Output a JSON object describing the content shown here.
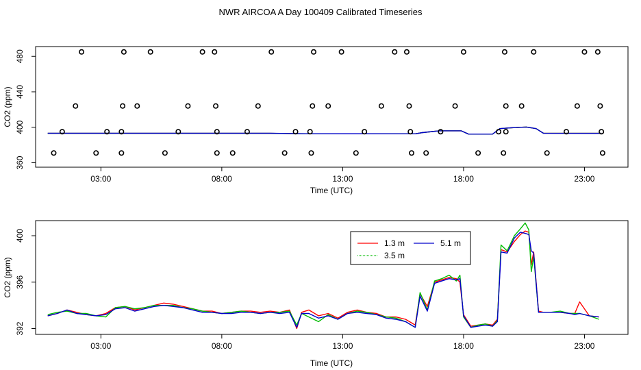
{
  "title": "NWR AIRCOA A  Day 100409  Calibrated Timeseries",
  "colors": {
    "1.3 m": "#ff0000",
    "3.5 m": "#00bb00",
    "5.1 m": "#0000cc"
  },
  "chart_data": [
    {
      "type": "scatter",
      "xlabel": "Time (UTC)",
      "ylabel": "CO2 (ppm)",
      "xlim": [
        0.3,
        24.8
      ],
      "ylim": [
        355,
        491
      ],
      "xticks": [
        3,
        8,
        13,
        18,
        23
      ],
      "xtick_labels": [
        "03:00",
        "08:00",
        "13:00",
        "18:00",
        "23:00"
      ],
      "yticks": [
        360,
        400,
        440,
        480
      ],
      "ytick_labels": [
        "360",
        "400",
        "440",
        "480"
      ],
      "grid": false,
      "points_x": [
        2.2,
        3.95,
        5.05,
        7.2,
        7.7,
        10.05,
        11.8,
        12.95,
        15.15,
        15.65,
        18.0,
        19.7,
        20.9,
        23.0,
        23.55,
        1.95,
        3.9,
        4.5,
        6.6,
        7.75,
        9.5,
        11.75,
        12.4,
        14.6,
        15.75,
        17.65,
        19.75,
        20.4,
        22.7,
        23.65,
        1.4,
        3.25,
        3.85,
        6.2,
        7.8,
        9.05,
        11.05,
        11.65,
        13.9,
        15.8,
        17.05,
        19.45,
        19.75,
        22.25,
        23.7,
        1.05,
        2.8,
        3.85,
        5.65,
        7.8,
        8.45,
        10.6,
        11.7,
        13.55,
        15.85,
        16.45,
        18.6,
        19.65,
        21.45,
        23.75
      ],
      "points_y": [
        485,
        485,
        485,
        485,
        485,
        485,
        485,
        485,
        485,
        485,
        485,
        485,
        485,
        485,
        485,
        424,
        424,
        424,
        424,
        424,
        424,
        424,
        424,
        424,
        424,
        424,
        424,
        424,
        424,
        424,
        395,
        395,
        395,
        395,
        395,
        395,
        395,
        395,
        395,
        395,
        395,
        395,
        395,
        395,
        395,
        371,
        371,
        371,
        371,
        371,
        371,
        371,
        371,
        371,
        371,
        371,
        371,
        371,
        371,
        371
      ],
      "series": [
        {
          "name": "1.3 m",
          "x": [
            0.8,
            10.0,
            11.5,
            16.0,
            16.3,
            17.0,
            17.9,
            18.2,
            19.2,
            19.5,
            20.0,
            20.6,
            21.0,
            21.3,
            23.7
          ],
          "y": [
            393.2,
            393.2,
            392.6,
            392.6,
            394.0,
            396.0,
            396.0,
            392.3,
            392.3,
            398.5,
            399.5,
            400.3,
            398.5,
            393.3,
            393.2
          ]
        },
        {
          "name": "3.5 m",
          "x": [
            0.8,
            10.0,
            11.5,
            16.0,
            16.3,
            17.0,
            17.9,
            18.2,
            19.2,
            19.5,
            20.0,
            20.6,
            21.0,
            21.3,
            23.7
          ],
          "y": [
            393.2,
            393.2,
            392.6,
            392.6,
            394.0,
            396.0,
            396.0,
            392.3,
            392.3,
            398.5,
            399.5,
            400.3,
            398.5,
            393.3,
            393.2
          ]
        },
        {
          "name": "5.1 m",
          "x": [
            0.8,
            10.0,
            11.5,
            16.0,
            16.3,
            17.0,
            17.9,
            18.2,
            19.2,
            19.5,
            20.0,
            20.6,
            21.0,
            21.3,
            23.7
          ],
          "y": [
            393.3,
            393.3,
            392.7,
            392.6,
            394.0,
            396.0,
            396.0,
            392.3,
            392.3,
            398.5,
            399.5,
            400.3,
            398.5,
            393.3,
            393.2
          ]
        }
      ]
    },
    {
      "type": "line",
      "xlabel": "Time (UTC)",
      "ylabel": "CO2 (ppm)",
      "xlim": [
        0.3,
        24.8
      ],
      "ylim": [
        391.5,
        401.3
      ],
      "xticks": [
        3,
        8,
        13,
        18,
        23
      ],
      "xtick_labels": [
        "03:00",
        "08:00",
        "13:00",
        "18:00",
        "23:00"
      ],
      "yticks": [
        392,
        396,
        400
      ],
      "ytick_labels": [
        "392",
        "396",
        "400"
      ],
      "grid": false,
      "legend": {
        "position": "top-right",
        "labels": [
          "1.3 m",
          "3.5 m",
          "5.1 m"
        ]
      },
      "series": [
        {
          "name": "1.3 m",
          "x": [
            0.8,
            1.2,
            1.6,
            2.0,
            2.4,
            2.8,
            3.2,
            3.6,
            4.0,
            4.4,
            4.8,
            5.2,
            5.6,
            6.0,
            6.4,
            6.8,
            7.2,
            7.6,
            8.0,
            8.4,
            8.8,
            9.2,
            9.6,
            10.0,
            10.4,
            10.8,
            11.1,
            11.3,
            11.6,
            12.0,
            12.4,
            12.8,
            13.2,
            13.6,
            14.0,
            14.4,
            14.8,
            15.2,
            15.6,
            16.0,
            16.2,
            16.5,
            16.8,
            17.1,
            17.4,
            17.7,
            17.85,
            18.0,
            18.3,
            18.6,
            18.9,
            19.2,
            19.4,
            19.55,
            19.8,
            20.1,
            20.35,
            20.55,
            20.7,
            20.8,
            20.9,
            21.1,
            21.3,
            21.6,
            22.0,
            22.4,
            22.6,
            22.8,
            23.2,
            23.6
          ],
          "y": [
            393.1,
            393.3,
            393.6,
            393.4,
            393.2,
            393.1,
            393.3,
            393.8,
            393.9,
            393.6,
            393.8,
            394.0,
            394.2,
            394.1,
            393.9,
            393.7,
            393.5,
            393.5,
            393.3,
            393.4,
            393.5,
            393.5,
            393.4,
            393.5,
            393.4,
            393.6,
            392.0,
            393.4,
            393.6,
            393.1,
            393.3,
            392.9,
            393.4,
            393.6,
            393.4,
            393.3,
            393.0,
            393.0,
            392.8,
            392.3,
            395.0,
            393.9,
            396.0,
            396.2,
            396.4,
            396.3,
            396.0,
            393.2,
            392.2,
            392.3,
            392.4,
            392.3,
            392.8,
            398.8,
            398.6,
            399.5,
            400.1,
            400.4,
            400.3,
            397.5,
            398.6,
            393.5,
            393.4,
            393.4,
            393.4,
            393.3,
            393.3,
            394.3,
            393.1,
            393.0
          ]
        },
        {
          "name": "3.5 m",
          "x": [
            0.8,
            1.2,
            1.6,
            2.0,
            2.4,
            2.8,
            3.2,
            3.6,
            4.0,
            4.4,
            4.8,
            5.2,
            5.6,
            6.0,
            6.4,
            6.8,
            7.2,
            7.6,
            8.0,
            8.4,
            8.8,
            9.2,
            9.6,
            10.0,
            10.4,
            10.8,
            11.1,
            11.3,
            11.6,
            12.0,
            12.4,
            12.8,
            13.2,
            13.6,
            14.0,
            14.4,
            14.8,
            15.2,
            15.6,
            16.0,
            16.2,
            16.5,
            16.8,
            17.1,
            17.4,
            17.7,
            17.85,
            18.0,
            18.3,
            18.6,
            18.9,
            19.2,
            19.4,
            19.55,
            19.8,
            20.1,
            20.35,
            20.55,
            20.7,
            20.8,
            20.9,
            21.1,
            21.3,
            21.6,
            22.0,
            22.4,
            22.6,
            22.8,
            23.2,
            23.6
          ],
          "y": [
            393.2,
            393.4,
            393.5,
            393.3,
            393.3,
            393.1,
            393.0,
            393.8,
            393.9,
            393.7,
            393.8,
            394.0,
            394.0,
            394.0,
            393.8,
            393.7,
            393.5,
            393.4,
            393.3,
            393.4,
            393.5,
            393.4,
            393.3,
            393.4,
            393.4,
            393.5,
            392.3,
            393.3,
            393.0,
            392.6,
            393.2,
            392.8,
            393.3,
            393.5,
            393.4,
            393.2,
            393.0,
            392.9,
            392.6,
            392.1,
            395.1,
            393.6,
            396.1,
            396.3,
            396.6,
            396.1,
            396.6,
            393.0,
            392.1,
            392.3,
            392.4,
            392.2,
            392.7,
            399.2,
            398.7,
            400.0,
            400.6,
            401.1,
            400.5,
            396.9,
            398.2,
            393.4,
            393.4,
            393.4,
            393.5,
            393.3,
            393.3,
            393.3,
            393.1,
            392.8
          ]
        },
        {
          "name": "5.1 m",
          "x": [
            0.8,
            1.2,
            1.6,
            2.0,
            2.4,
            2.8,
            3.2,
            3.6,
            4.0,
            4.4,
            4.8,
            5.2,
            5.6,
            6.0,
            6.4,
            6.8,
            7.2,
            7.6,
            8.0,
            8.4,
            8.8,
            9.2,
            9.6,
            10.0,
            10.4,
            10.8,
            11.1,
            11.3,
            11.6,
            12.0,
            12.4,
            12.8,
            13.2,
            13.6,
            14.0,
            14.4,
            14.8,
            15.2,
            15.6,
            16.0,
            16.2,
            16.5,
            16.8,
            17.1,
            17.4,
            17.7,
            17.85,
            18.0,
            18.3,
            18.6,
            18.9,
            19.2,
            19.4,
            19.55,
            19.8,
            20.1,
            20.35,
            20.55,
            20.7,
            20.8,
            20.9,
            21.1,
            21.3,
            21.6,
            22.0,
            22.4,
            22.6,
            22.8,
            23.2,
            23.6
          ],
          "y": [
            393.1,
            393.3,
            393.6,
            393.3,
            393.2,
            393.1,
            393.2,
            393.7,
            393.8,
            393.5,
            393.7,
            393.9,
            394.0,
            393.9,
            393.8,
            393.6,
            393.4,
            393.4,
            393.3,
            393.3,
            393.4,
            393.4,
            393.3,
            393.4,
            393.3,
            393.4,
            392.1,
            393.3,
            393.3,
            392.9,
            393.1,
            392.8,
            393.3,
            393.4,
            393.3,
            393.2,
            392.9,
            392.8,
            392.6,
            392.1,
            394.8,
            393.5,
            395.9,
            396.1,
            396.3,
            396.2,
            396.3,
            393.1,
            392.1,
            392.2,
            392.3,
            392.2,
            392.6,
            398.6,
            398.5,
            399.8,
            400.3,
            400.2,
            400.1,
            398.7,
            398.5,
            393.4,
            393.4,
            393.4,
            393.4,
            393.3,
            393.2,
            393.3,
            393.1,
            393.0
          ]
        }
      ]
    }
  ]
}
